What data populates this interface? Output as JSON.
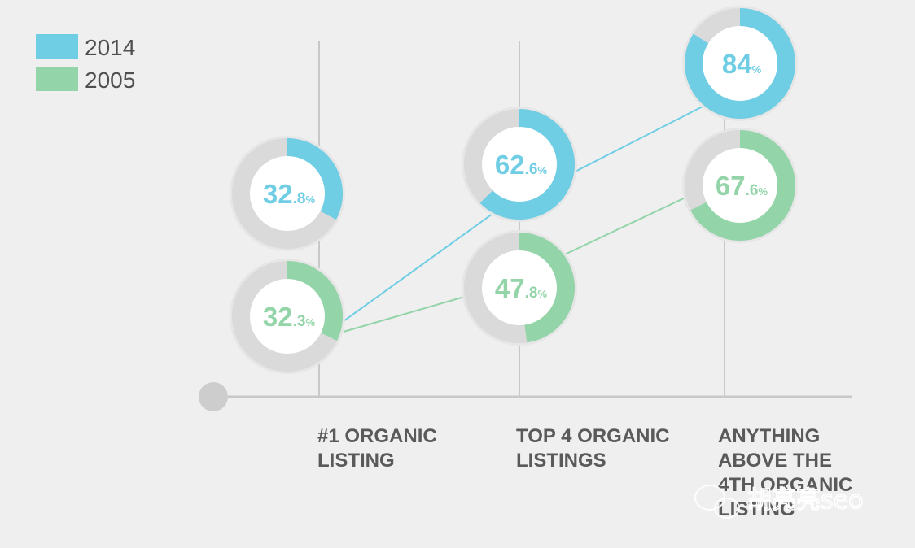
{
  "chart_data": {
    "type": "line",
    "categories": [
      [
        "#1 ORGANIC",
        "LISTING"
      ],
      [
        "TOP 4 ORGANIC",
        "LISTINGS"
      ],
      [
        "ANYTHING",
        "ABOVE THE",
        "4TH ORGANIC",
        "LISTING"
      ]
    ],
    "series": [
      {
        "name": "2014",
        "color": "#6fcde4",
        "values": [
          32.8,
          62.6,
          84
        ]
      },
      {
        "name": "2005",
        "color": "#93d4a9",
        "values": [
          32.3,
          47.8,
          67.6
        ]
      }
    ],
    "value_labels": {
      "2014": [
        [
          "32",
          ".8",
          "%"
        ],
        [
          "62",
          ".6",
          "%"
        ],
        [
          "84",
          "",
          "%"
        ]
      ],
      "2005": [
        [
          "32",
          ".3",
          "%"
        ],
        [
          "47",
          ".8",
          "%"
        ],
        [
          "67",
          ".6",
          "%"
        ]
      ]
    },
    "markers": "donut",
    "ring_color": "#dadada",
    "axis_color": "#c8c8c8",
    "legend_position": "top-left",
    "grid": false
  },
  "watermark": {
    "text": "胡亮亮seo",
    "icon": "wechat-icon"
  }
}
